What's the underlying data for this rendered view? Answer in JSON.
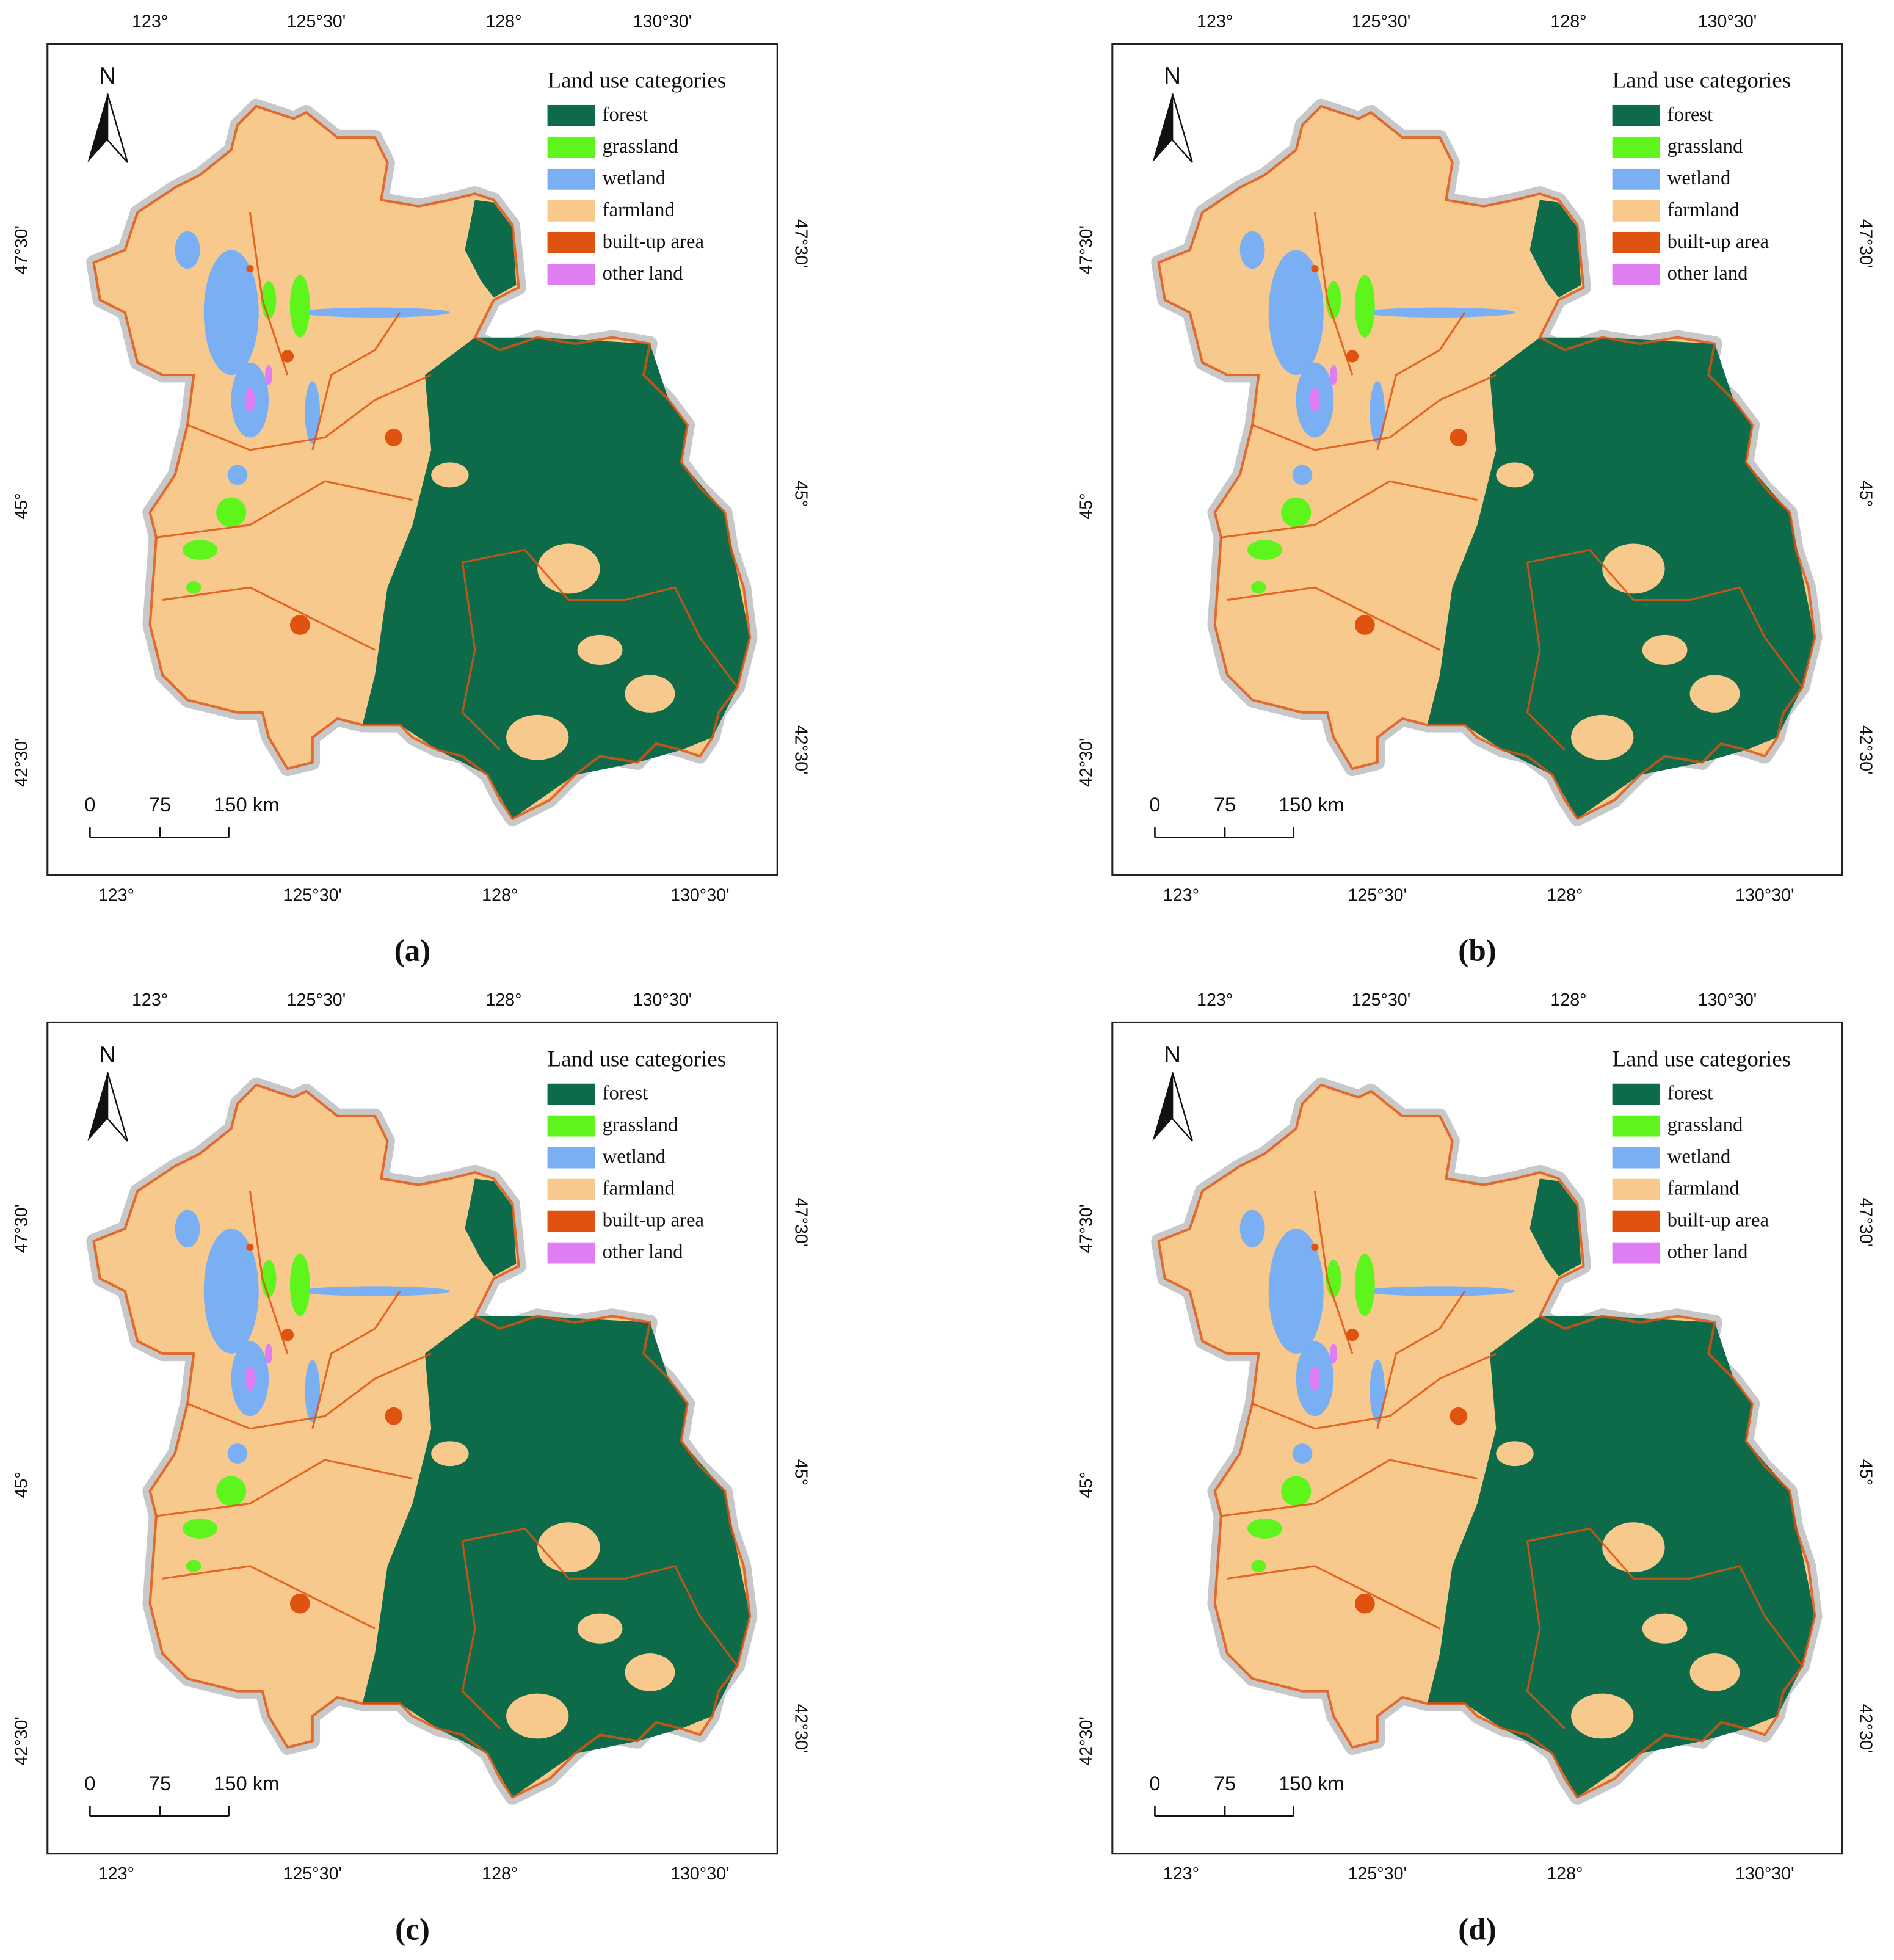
{
  "panels": [
    {
      "caption": "(a)",
      "north": "N",
      "legend": {
        "title": "Land use categories",
        "items": [
          {
            "name": "forest",
            "color": "#0e6b4a"
          },
          {
            "name": "grassland",
            "color": "#5ef51c"
          },
          {
            "name": "wetland",
            "color": "#7aaff4"
          },
          {
            "name": "farmland",
            "color": "#f8c98c"
          },
          {
            "name": "built-up area",
            "color": "#e0520f"
          },
          {
            "name": "other land",
            "color": "#df7ef2"
          }
        ]
      },
      "graticule": {
        "top": [
          "123°",
          "125°30'",
          "128°",
          "130°30'"
        ],
        "bottom": [
          "123°",
          "125°30'",
          "128°",
          "130°30'"
        ],
        "left": [
          "47°30'",
          "45°",
          "42°30'"
        ],
        "right": [
          "47°30'",
          "45°",
          "42°30'"
        ]
      },
      "scale_bar": [
        "0",
        "75",
        "150 km"
      ]
    },
    {
      "caption": "(b)",
      "north": "N",
      "legend": {
        "title": "Land use categories",
        "items": [
          {
            "name": "forest",
            "color": "#0e6b4a"
          },
          {
            "name": "grassland",
            "color": "#5ef51c"
          },
          {
            "name": "wetland",
            "color": "#7aaff4"
          },
          {
            "name": "farmland",
            "color": "#f8c98c"
          },
          {
            "name": "built-up area",
            "color": "#e0520f"
          },
          {
            "name": "other land",
            "color": "#df7ef2"
          }
        ]
      },
      "graticule": {
        "top": [
          "123°",
          "125°30'",
          "128°",
          "130°30'"
        ],
        "bottom": [
          "123°",
          "125°30'",
          "128°",
          "130°30'"
        ],
        "left": [
          "47°30'",
          "45°",
          "42°30'"
        ],
        "right": [
          "47°30'",
          "45°",
          "42°30'"
        ]
      },
      "scale_bar": [
        "0",
        "75",
        "150 km"
      ]
    },
    {
      "caption": "(c)",
      "north": "N",
      "legend": {
        "title": "Land use categories",
        "items": [
          {
            "name": "forest",
            "color": "#0e6b4a"
          },
          {
            "name": "grassland",
            "color": "#5ef51c"
          },
          {
            "name": "wetland",
            "color": "#7aaff4"
          },
          {
            "name": "farmland",
            "color": "#f8c98c"
          },
          {
            "name": "built-up area",
            "color": "#e0520f"
          },
          {
            "name": "other land",
            "color": "#df7ef2"
          }
        ]
      },
      "graticule": {
        "top": [
          "123°",
          "125°30'",
          "128°",
          "130°30'"
        ],
        "bottom": [
          "123°",
          "125°30'",
          "128°",
          "130°30'"
        ],
        "left": [
          "47°30'",
          "45°",
          "42°30'"
        ],
        "right": [
          "47°30'",
          "45°",
          "42°30'"
        ]
      },
      "scale_bar": [
        "0",
        "75",
        "150 km"
      ]
    },
    {
      "caption": "(d)",
      "north": "N",
      "legend": {
        "title": "Land use categories",
        "items": [
          {
            "name": "forest",
            "color": "#0e6b4a"
          },
          {
            "name": "grassland",
            "color": "#5ef51c"
          },
          {
            "name": "wetland",
            "color": "#7aaff4"
          },
          {
            "name": "farmland",
            "color": "#f8c98c"
          },
          {
            "name": "built-up area",
            "color": "#e0520f"
          },
          {
            "name": "other land",
            "color": "#df7ef2"
          }
        ]
      },
      "graticule": {
        "top": [
          "123°",
          "125°30'",
          "128°",
          "130°30'"
        ],
        "bottom": [
          "123°",
          "125°30'",
          "128°",
          "130°30'"
        ],
        "left": [
          "47°30'",
          "45°",
          "42°30'"
        ],
        "right": [
          "47°30'",
          "45°",
          "42°30'"
        ]
      },
      "scale_bar": [
        "0",
        "75",
        "150 km"
      ]
    }
  ]
}
